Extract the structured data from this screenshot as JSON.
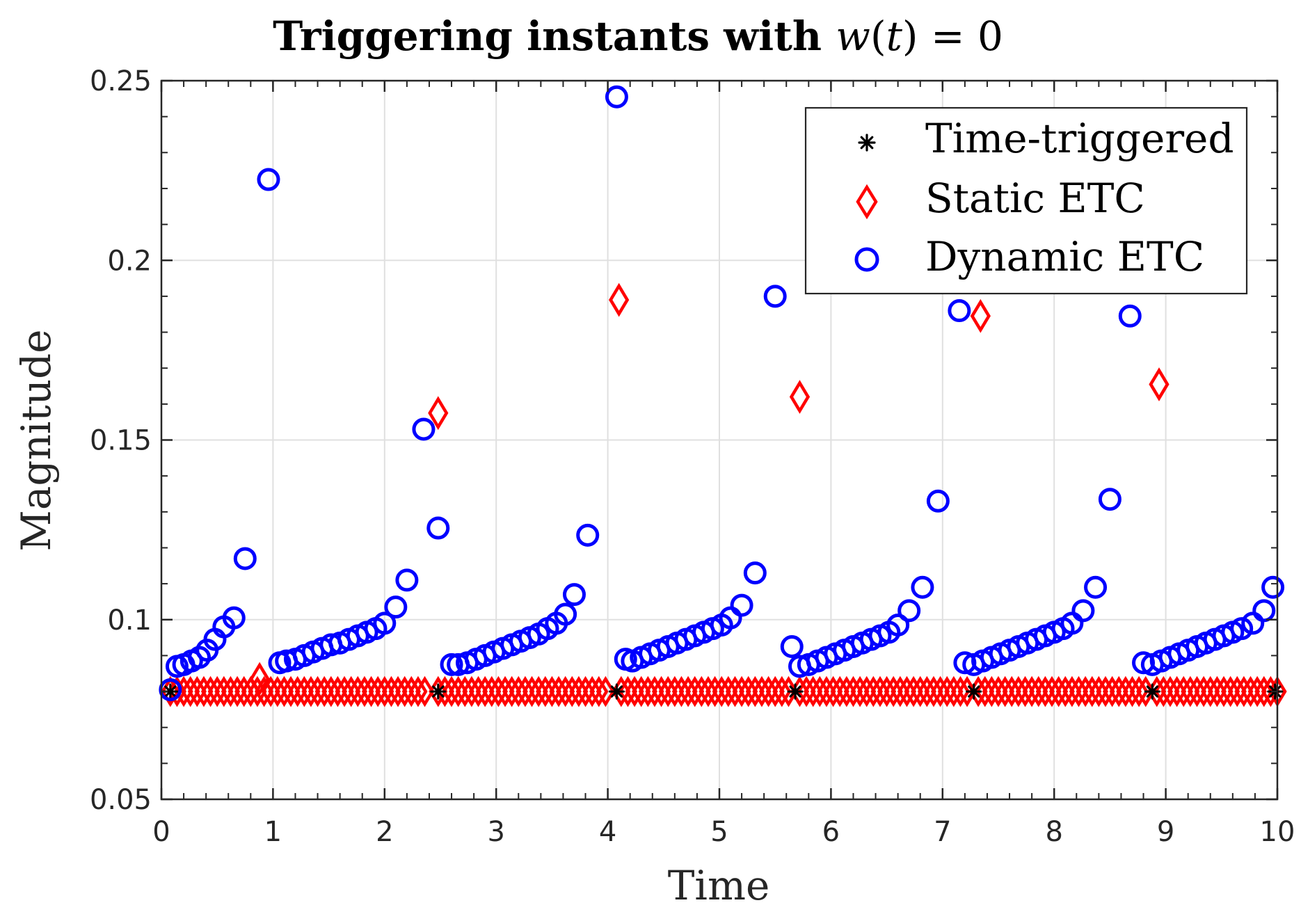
{
  "chart_data": {
    "type": "scatter",
    "title": "Triggering instants with w(t) = 0",
    "title_parts": {
      "prefix": "Triggering instants with ",
      "var": "w",
      "open": "(",
      "arg": "t",
      "close": ")",
      "rest": " = 0"
    },
    "xlabel": "Time",
    "ylabel": "Magnitude",
    "xlim": [
      0,
      10
    ],
    "ylim": [
      0.05,
      0.25
    ],
    "xticks": [
      0,
      1,
      2,
      3,
      4,
      5,
      6,
      7,
      8,
      9,
      10
    ],
    "yticks": [
      0.05,
      0.1,
      0.15,
      0.2,
      0.25
    ],
    "xtick_labels": [
      "0",
      "1",
      "2",
      "3",
      "4",
      "5",
      "6",
      "7",
      "8",
      "9",
      "10"
    ],
    "ytick_labels": [
      "0.05",
      "0.1",
      "0.15",
      "0.2",
      "0.25"
    ],
    "grid": true,
    "legend_position": "top-right",
    "colors": {
      "time": "#000000",
      "static": "#ff0000",
      "dynamic": "#0000ff",
      "grid": "#e0e0e0",
      "axis": "#262626"
    },
    "series": [
      {
        "name": "Time-triggered",
        "marker": "asterisk",
        "x": [
          0.08,
          2.48,
          4.08,
          5.68,
          7.28,
          8.88,
          9.98
        ],
        "y": [
          0.08,
          0.08,
          0.08,
          0.08,
          0.08,
          0.08,
          0.08
        ]
      },
      {
        "name": "Static ETC",
        "marker": "diamond",
        "dense_segments": [
          [
            0.08,
            2.4
          ],
          [
            2.48,
            4.0
          ],
          [
            4.12,
            5.64
          ],
          [
            5.72,
            7.24
          ],
          [
            7.32,
            8.84
          ],
          [
            8.92,
            10.0
          ]
        ],
        "dense_value": 0.08,
        "dense_step": 0.06,
        "x": [
          0.88,
          2.48,
          4.1,
          5.72,
          7.34,
          8.94
        ],
        "y": [
          0.0835,
          0.1575,
          0.189,
          0.162,
          0.1845,
          0.1655
        ]
      },
      {
        "name": "Dynamic ETC",
        "marker": "circle",
        "x": [
          0.08,
          0.14,
          0.2,
          0.27,
          0.34,
          0.41,
          0.48,
          0.56,
          0.65,
          0.75,
          0.96,
          1.06,
          1.12,
          1.2,
          1.28,
          1.36,
          1.44,
          1.52,
          1.6,
          1.68,
          1.76,
          1.84,
          1.92,
          2.0,
          2.1,
          2.2,
          2.35,
          2.48,
          2.6,
          2.66,
          2.74,
          2.82,
          2.9,
          2.98,
          3.06,
          3.14,
          3.22,
          3.3,
          3.38,
          3.46,
          3.54,
          3.62,
          3.7,
          3.82,
          4.08,
          4.16,
          4.22,
          4.3,
          4.38,
          4.46,
          4.54,
          4.62,
          4.7,
          4.78,
          4.86,
          4.94,
          5.02,
          5.1,
          5.2,
          5.32,
          5.5,
          5.65,
          5.72,
          5.8,
          5.88,
          5.96,
          6.04,
          6.12,
          6.2,
          6.28,
          6.36,
          6.44,
          6.52,
          6.6,
          6.7,
          6.82,
          6.96,
          7.15,
          7.2,
          7.28,
          7.36,
          7.44,
          7.52,
          7.6,
          7.68,
          7.76,
          7.84,
          7.92,
          8.0,
          8.08,
          8.16,
          8.26,
          8.37,
          8.5,
          8.68,
          8.8,
          8.88,
          8.96,
          9.04,
          9.12,
          9.2,
          9.28,
          9.36,
          9.44,
          9.52,
          9.6,
          9.68,
          9.78,
          9.88,
          9.96
        ],
        "y": [
          0.0805,
          0.087,
          0.0875,
          0.0885,
          0.0895,
          0.0915,
          0.0945,
          0.098,
          0.1005,
          0.117,
          0.2225,
          0.088,
          0.0885,
          0.089,
          0.09,
          0.091,
          0.092,
          0.093,
          0.0935,
          0.0945,
          0.0955,
          0.0965,
          0.0975,
          0.099,
          0.1035,
          0.111,
          0.153,
          0.1255,
          0.0875,
          0.0875,
          0.088,
          0.089,
          0.09,
          0.091,
          0.092,
          0.093,
          0.094,
          0.095,
          0.096,
          0.0975,
          0.099,
          0.1015,
          0.107,
          0.1235,
          0.2455,
          0.089,
          0.0885,
          0.0895,
          0.0905,
          0.0915,
          0.0925,
          0.0935,
          0.0945,
          0.0955,
          0.0965,
          0.0975,
          0.0985,
          0.1005,
          0.104,
          0.113,
          0.19,
          0.0925,
          0.087,
          0.0875,
          0.0885,
          0.0895,
          0.0905,
          0.0915,
          0.0925,
          0.0935,
          0.0945,
          0.0955,
          0.0965,
          0.0985,
          0.1025,
          0.109,
          0.133,
          0.186,
          0.088,
          0.0875,
          0.0885,
          0.0895,
          0.0905,
          0.0915,
          0.0925,
          0.0935,
          0.0945,
          0.0955,
          0.0965,
          0.0975,
          0.099,
          0.1025,
          0.109,
          0.1335,
          0.1845,
          0.088,
          0.0875,
          0.0885,
          0.0895,
          0.0905,
          0.0915,
          0.0925,
          0.0935,
          0.0945,
          0.0955,
          0.0965,
          0.0975,
          0.099,
          0.1025,
          0.109
        ]
      }
    ]
  }
}
